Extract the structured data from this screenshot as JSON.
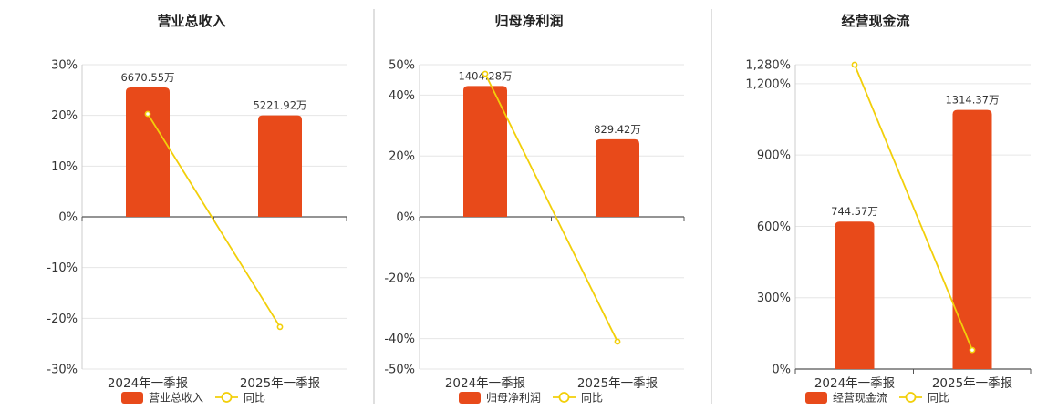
{
  "chart_data": [
    {
      "type": "bar",
      "title": "营业总收入",
      "categories": [
        "2024年一季报",
        "2025年一季报"
      ],
      "series": [
        {
          "name": "营业总收入",
          "kind": "bar",
          "labels": [
            "6670.55万",
            "5221.92万"
          ],
          "values": [
            25.5,
            20.0
          ]
        },
        {
          "name": "同比",
          "kind": "line",
          "values": [
            20.3,
            -21.7
          ]
        }
      ],
      "ylim": [
        -30,
        30
      ],
      "yticks": [
        30,
        20,
        10,
        0,
        -10,
        -20,
        -30
      ],
      "yticklabels": [
        "30%",
        "20%",
        "10%",
        "0%",
        "-10%",
        "-20%",
        "-30%"
      ],
      "grid": true,
      "legend": "bottom",
      "colors": {
        "bar": "#E84A1A",
        "line": "#F2CF0A"
      }
    },
    {
      "type": "bar",
      "title": "归母净利润",
      "categories": [
        "2024年一季报",
        "2025年一季报"
      ],
      "series": [
        {
          "name": "归母净利润",
          "kind": "bar",
          "labels": [
            "1404.28万",
            "829.42万"
          ],
          "values": [
            43.0,
            25.5
          ]
        },
        {
          "name": "同比",
          "kind": "line",
          "values": [
            47.0,
            -41.0
          ]
        }
      ],
      "ylim": [
        -50,
        50
      ],
      "yticks": [
        50,
        40,
        20,
        0,
        -20,
        -40,
        -50
      ],
      "yticklabels": [
        "50%",
        "40%",
        "20%",
        "0%",
        "-20%",
        "-40%",
        "-50%"
      ],
      "grid": true,
      "legend": "bottom",
      "colors": {
        "bar": "#E84A1A",
        "line": "#F2CF0A"
      }
    },
    {
      "type": "bar",
      "title": "经营现金流",
      "categories": [
        "2024年一季报",
        "2025年一季报"
      ],
      "series": [
        {
          "name": "经营现金流",
          "kind": "bar",
          "labels": [
            "744.57万",
            "1314.37万"
          ],
          "values": [
            620,
            1090
          ]
        },
        {
          "name": "同比",
          "kind": "line",
          "values": [
            1280,
            80
          ]
        }
      ],
      "ylim": [
        0,
        1280
      ],
      "yticks": [
        1280,
        1200,
        900,
        600,
        300,
        0
      ],
      "yticklabels": [
        "1,280%",
        "1,200%",
        "900%",
        "600%",
        "300%",
        "0%"
      ],
      "grid": true,
      "legend": "bottom",
      "colors": {
        "bar": "#E84A1A",
        "line": "#F2CF0A"
      }
    }
  ]
}
